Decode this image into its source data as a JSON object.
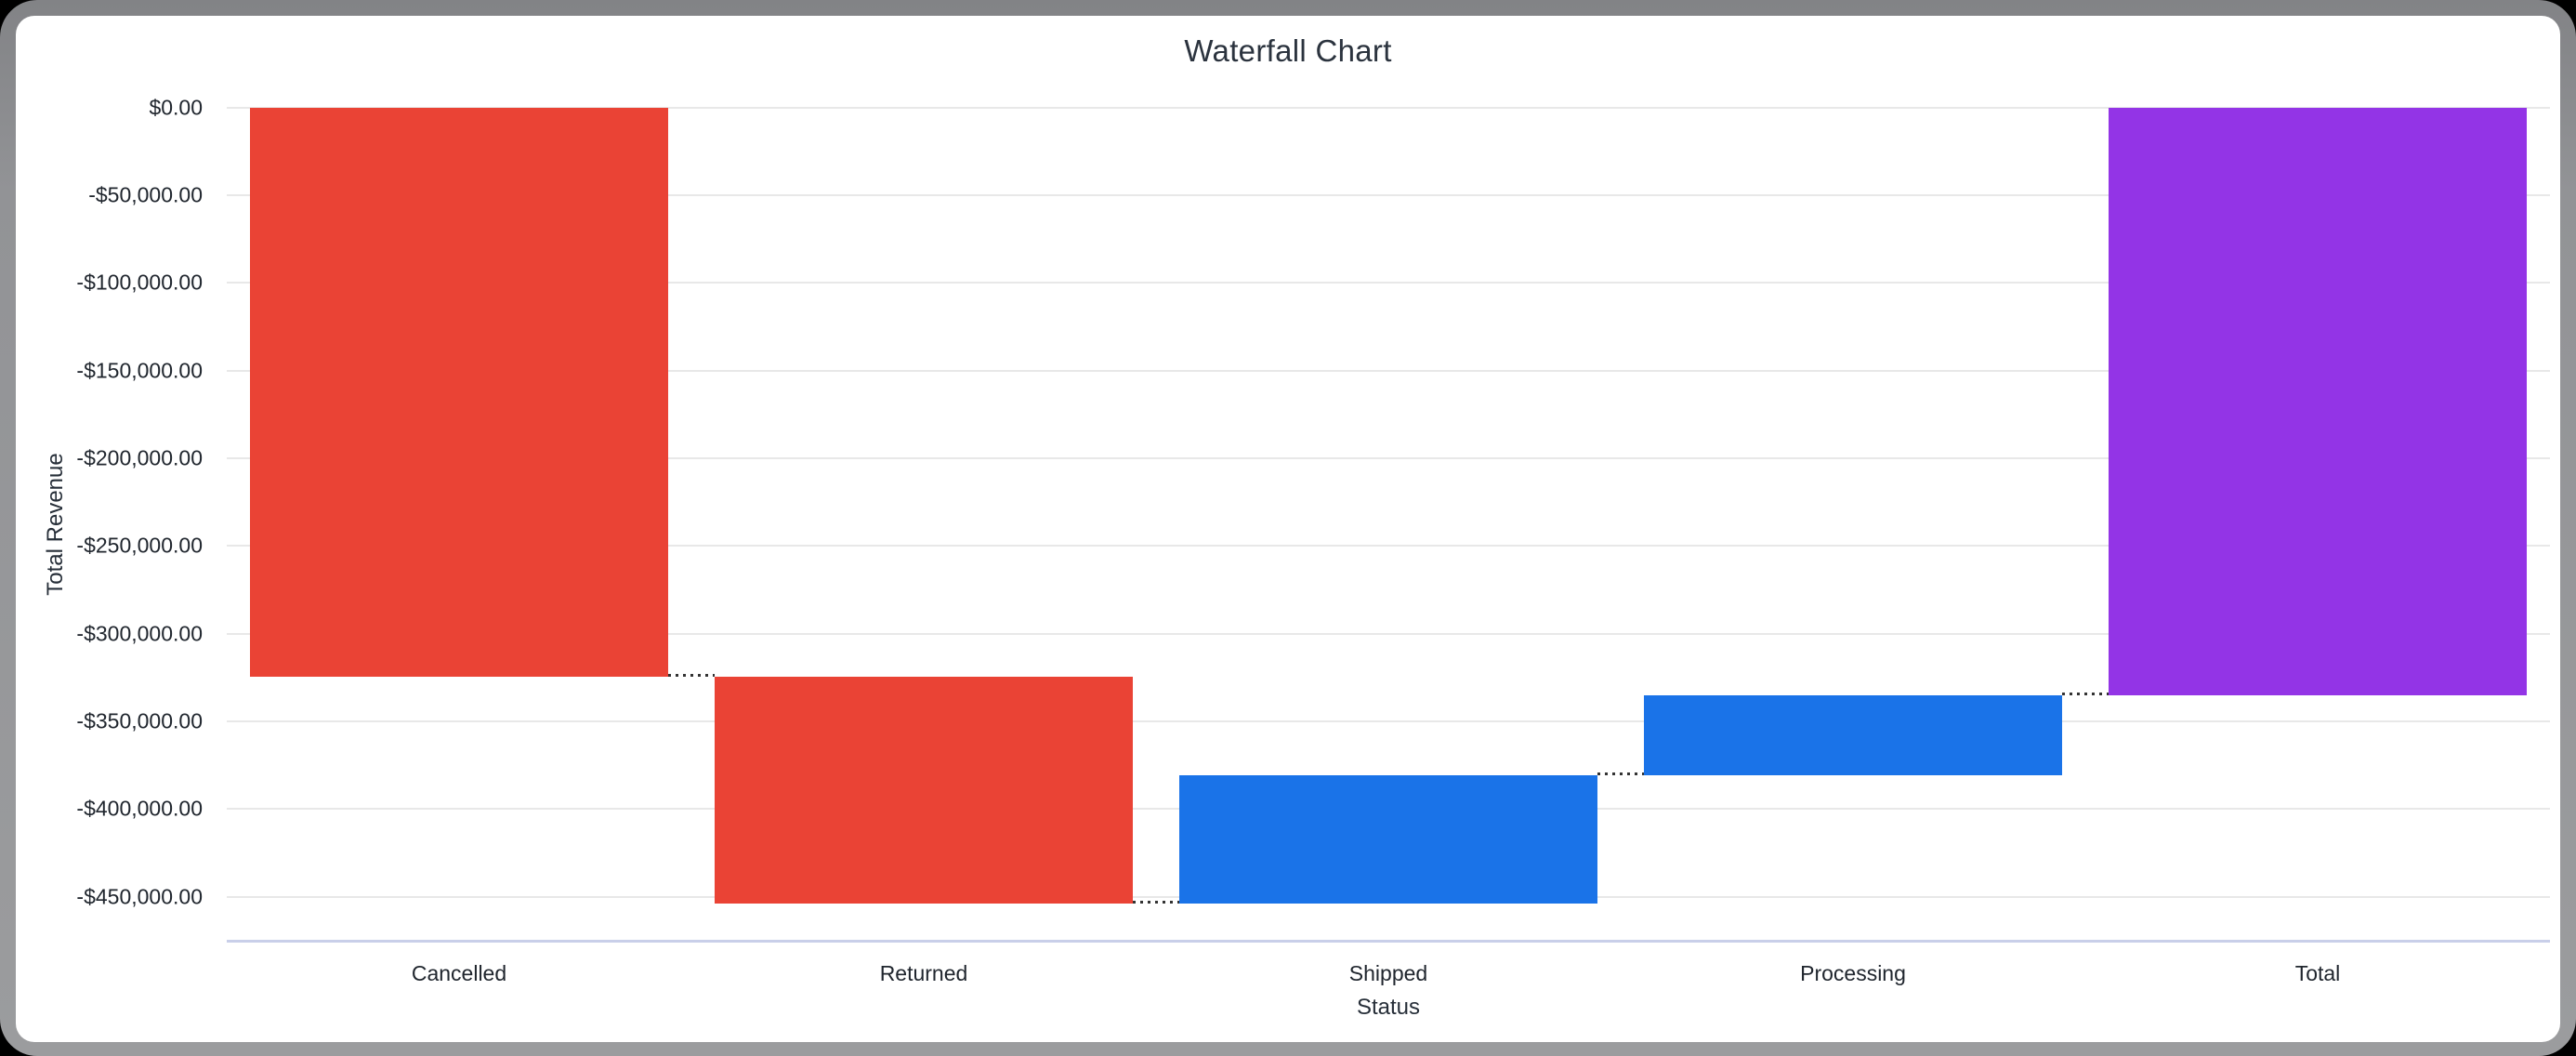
{
  "window": {
    "page_background": "#000000",
    "frame_color": "#929396",
    "card_color": "#ffffff"
  },
  "chart_data": {
    "type": "bar",
    "subtype": "waterfall",
    "title": "Waterfall Chart",
    "xlabel": "Status",
    "ylabel": "Total Revenue",
    "categories": [
      "Cancelled",
      "Returned",
      "Shipped",
      "Processing",
      "Total"
    ],
    "bars": [
      {
        "label": "Cancelled",
        "value": -324300,
        "start": 0,
        "end": -324300,
        "color": "#EA4335",
        "kind": "decrease"
      },
      {
        "label": "Returned",
        "value": -129600,
        "start": -324300,
        "end": -453900,
        "color": "#EA4335",
        "kind": "decrease"
      },
      {
        "label": "Shipped",
        "value": 73300,
        "start": -453900,
        "end": -380600,
        "color": "#1A73E8",
        "kind": "increase"
      },
      {
        "label": "Processing",
        "value": 45600,
        "start": -380600,
        "end": -335000,
        "color": "#1A73E8",
        "kind": "increase"
      },
      {
        "label": "Total",
        "value": -335000,
        "start": 0,
        "end": -335000,
        "color": "#9334E6",
        "kind": "total"
      }
    ],
    "ylim": [
      0,
      -475000
    ],
    "yticks": [
      {
        "value": 0,
        "label": "$0.00"
      },
      {
        "value": -50000,
        "label": "-$50,000.00"
      },
      {
        "value": -100000,
        "label": "-$100,000.00"
      },
      {
        "value": -150000,
        "label": "-$150,000.00"
      },
      {
        "value": -200000,
        "label": "-$200,000.00"
      },
      {
        "value": -250000,
        "label": "-$250,000.00"
      },
      {
        "value": -300000,
        "label": "-$300,000.00"
      },
      {
        "value": -350000,
        "label": "-$350,000.00"
      },
      {
        "value": -400000,
        "label": "-$400,000.00"
      },
      {
        "value": -450000,
        "label": "-$450,000.00"
      }
    ],
    "grid": true,
    "legend": "none",
    "gridline_color": "#e8e8e8",
    "baseline_color": "#c9cfe9",
    "connector_color": "#333333",
    "colors": {
      "decrease": "#EA4335",
      "increase": "#1A73E8",
      "total": "#9334E6"
    }
  }
}
